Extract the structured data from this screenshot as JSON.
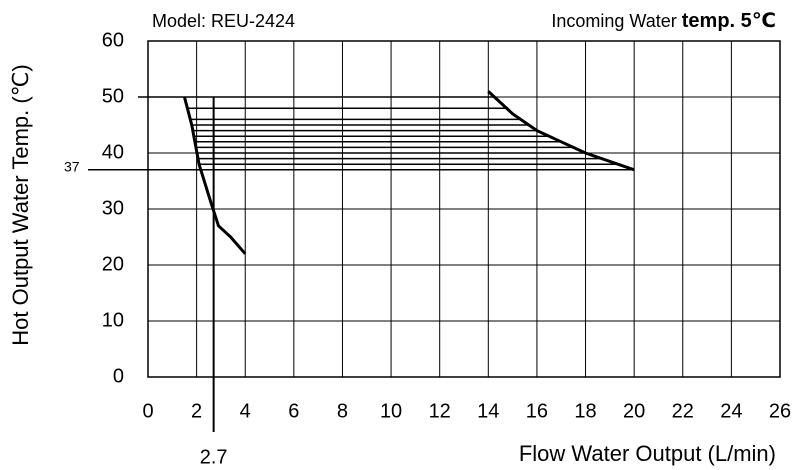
{
  "chart_data": {
    "type": "line",
    "title": "Model: REU-2424",
    "subtitle": [
      "Incoming Water",
      "temp. 5℃"
    ],
    "x_label": "Flow Water Output (L/min)",
    "y_label": "Hot  Output Water Temp. (℃)",
    "xlim": [
      0,
      26
    ],
    "xticks": [
      0,
      2,
      4,
      6,
      8,
      10,
      12,
      14,
      16,
      18,
      20,
      22,
      24,
      26
    ],
    "ylim": [
      0,
      60
    ],
    "yticks": [
      0,
      10,
      20,
      30,
      40,
      50,
      60
    ],
    "grid": true,
    "color": "#000000",
    "curves": [
      {
        "x": [
          1.5,
          1.8,
          2.1,
          2.6,
          2.9,
          3.4,
          4.0
        ],
        "values": [
          50,
          45,
          38,
          31,
          27,
          25,
          22
        ]
      },
      {
        "x": [
          14.0,
          15.0,
          16.0,
          17.0,
          18.0,
          20.0
        ],
        "values": [
          51,
          47,
          44,
          42,
          40,
          37
        ]
      }
    ],
    "levels": [
      37,
      38,
      39,
      40,
      41,
      42,
      43,
      44,
      45,
      46,
      48,
      50
    ],
    "ref_y": 37,
    "ref_x": 2.7
  }
}
